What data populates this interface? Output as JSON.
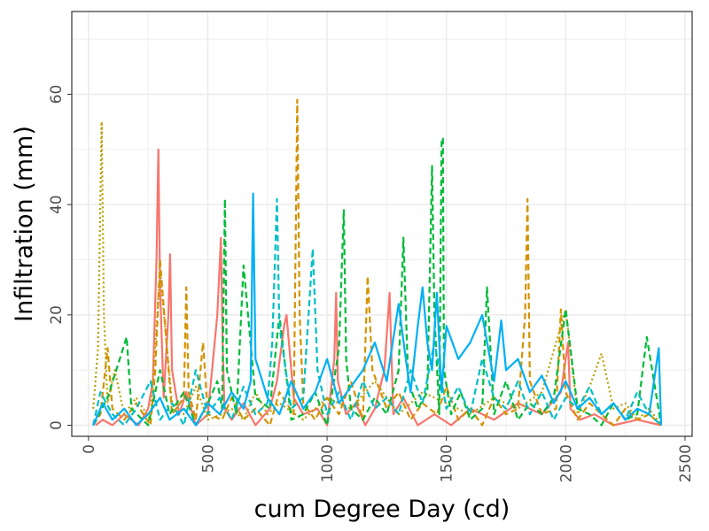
{
  "chart_data": {
    "type": "line",
    "title": "",
    "xlabel": "cum Degree Day (cd)",
    "ylabel": "Infiltration (mm)",
    "xlim": [
      -70,
      2530
    ],
    "ylim": [
      -2,
      75
    ],
    "x_ticks": [
      0,
      500,
      1000,
      1500,
      2000,
      2500
    ],
    "y_ticks": [
      0,
      20,
      40,
      60
    ],
    "grid": true,
    "legend": "none",
    "background": "#ffffff",
    "panel_border": "#333333",
    "grid_color": "#ebebeb",
    "series": [
      {
        "color": "#F8766D",
        "dash": "solid",
        "x": [
          30,
          60,
          100,
          150,
          210,
          250,
          270,
          285,
          293,
          300,
          315,
          335,
          342,
          350,
          380,
          410,
          450,
          500,
          540,
          555,
          562,
          570,
          600,
          650,
          700,
          760,
          790,
          820,
          830,
          860,
          900,
          960,
          1000,
          1030,
          1038,
          1045,
          1080,
          1120,
          1160,
          1200,
          1240,
          1262,
          1270,
          1278,
          1320,
          1380,
          1450,
          1520,
          1600,
          1700,
          1800,
          1900,
          1980,
          2010,
          2020,
          2060,
          2120,
          2200,
          2300,
          2400
        ],
        "y": [
          0,
          1,
          0,
          2,
          0,
          3,
          8,
          30,
          50,
          25,
          5,
          20,
          31,
          10,
          2,
          6,
          0,
          2,
          20,
          34,
          15,
          3,
          1,
          4,
          0,
          3,
          8,
          18,
          20,
          5,
          2,
          3,
          0,
          12,
          24,
          8,
          2,
          4,
          0,
          3,
          10,
          24,
          12,
          2,
          5,
          0,
          2,
          0,
          3,
          1,
          4,
          2,
          6,
          15,
          3,
          1,
          2,
          0,
          1,
          0
        ]
      },
      {
        "color": "#B79F00",
        "dash": "dotted",
        "x": [
          20,
          40,
          55,
          65,
          80,
          110,
          150,
          200,
          260,
          300,
          350,
          400,
          450,
          500,
          560,
          600,
          650,
          700,
          750,
          800,
          900,
          1000,
          1100,
          1200,
          1300,
          1400,
          1500,
          1600,
          1700,
          1800,
          1900,
          2000,
          2050,
          2100,
          2150,
          2200,
          2250,
          2300,
          2350,
          2400
        ],
        "y": [
          3,
          14,
          55,
          20,
          4,
          10,
          2,
          5,
          1,
          28,
          4,
          2,
          7,
          1,
          2,
          3,
          1,
          6,
          2,
          4,
          1,
          5,
          3,
          8,
          2,
          6,
          4,
          2,
          5,
          3,
          6,
          21,
          2,
          7,
          13,
          3,
          4,
          1,
          3,
          0
        ]
      },
      {
        "color": "#D39200",
        "dash": "dashed",
        "x": [
          20,
          50,
          80,
          100,
          150,
          200,
          260,
          280,
          300,
          350,
          400,
          410,
          420,
          450,
          480,
          500,
          560,
          600,
          650,
          700,
          760,
          800,
          860,
          875,
          885,
          900,
          950,
          1000,
          1050,
          1100,
          1150,
          1170,
          1190,
          1250,
          1300,
          1350,
          1400,
          1460,
          1500,
          1550,
          1600,
          1650,
          1700,
          1750,
          1800,
          1830,
          1840,
          1850,
          1900,
          1960,
          1980,
          2000,
          2050,
          2100,
          2150,
          2200,
          2250,
          2300,
          2350,
          2400
        ],
        "y": [
          0,
          2,
          14,
          3,
          1,
          4,
          0,
          10,
          30,
          2,
          5,
          25,
          6,
          1,
          15,
          2,
          1,
          5,
          1,
          3,
          0,
          6,
          2,
          59,
          20,
          4,
          1,
          5,
          2,
          8,
          1,
          27,
          10,
          3,
          6,
          1,
          4,
          2,
          7,
          1,
          3,
          0,
          5,
          2,
          3,
          20,
          41,
          8,
          2,
          3,
          21,
          6,
          1,
          4,
          2,
          0,
          3,
          1,
          2,
          0
        ]
      },
      {
        "color": "#00BA38",
        "dash": "dashed",
        "x": [
          20,
          80,
          160,
          180,
          250,
          300,
          340,
          400,
          450,
          500,
          540,
          560,
          572,
          580,
          620,
          650,
          700,
          760,
          800,
          850,
          900,
          950,
          1000,
          1050,
          1070,
          1080,
          1100,
          1150,
          1200,
          1250,
          1300,
          1320,
          1340,
          1380,
          1420,
          1440,
          1450,
          1470,
          1480,
          1485,
          1490,
          1520,
          1560,
          1600,
          1650,
          1670,
          1700,
          1750,
          1800,
          1850,
          1900,
          1950,
          2000,
          2050,
          2100,
          2150,
          2200,
          2250,
          2300,
          2340,
          2400
        ],
        "y": [
          0,
          5,
          16,
          3,
          0,
          10,
          2,
          6,
          0,
          4,
          8,
          3,
          41,
          10,
          2,
          29,
          5,
          3,
          20,
          1,
          2,
          6,
          0,
          14,
          39,
          12,
          3,
          1,
          5,
          2,
          10,
          34,
          8,
          3,
          6,
          47,
          20,
          2,
          52,
          52,
          10,
          2,
          6,
          1,
          3,
          25,
          2,
          8,
          1,
          4,
          2,
          5,
          21,
          3,
          2,
          0,
          4,
          1,
          2,
          16,
          0
        ]
      },
      {
        "color": "#00BFC4",
        "dash": "dashed",
        "x": [
          20,
          50,
          100,
          150,
          200,
          260,
          300,
          350,
          400,
          450,
          500,
          550,
          600,
          650,
          700,
          750,
          770,
          790,
          800,
          850,
          900,
          940,
          960,
          1000,
          1050,
          1100,
          1150,
          1200,
          1250,
          1300,
          1350,
          1400,
          1450,
          1500,
          1550,
          1600,
          1650,
          1700,
          1750,
          1800,
          1850,
          1900,
          1950,
          2000,
          2050,
          2100,
          2150,
          2200,
          2250,
          2300,
          2350,
          2400
        ],
        "y": [
          0,
          6,
          2,
          0,
          3,
          8,
          1,
          4,
          0,
          10,
          2,
          5,
          1,
          7,
          2,
          4,
          15,
          41,
          18,
          3,
          5,
          32,
          10,
          2,
          6,
          1,
          8,
          3,
          5,
          2,
          10,
          4,
          15,
          3,
          7,
          2,
          12,
          5,
          3,
          8,
          2,
          6,
          1,
          5,
          3,
          7,
          2,
          4,
          1,
          6,
          2,
          0
        ]
      },
      {
        "color": "#00B0F6",
        "dash": "solid",
        "x": [
          20,
          60,
          100,
          150,
          200,
          250,
          300,
          340,
          400,
          450,
          500,
          550,
          600,
          650,
          680,
          690,
          700,
          750,
          800,
          850,
          900,
          950,
          1000,
          1050,
          1100,
          1150,
          1200,
          1250,
          1300,
          1330,
          1350,
          1380,
          1400,
          1410,
          1420,
          1440,
          1460,
          1480,
          1500,
          1550,
          1600,
          1650,
          1700,
          1730,
          1750,
          1800,
          1850,
          1900,
          1950,
          2000,
          2050,
          2100,
          2150,
          2200,
          2250,
          2300,
          2350,
          2390,
          2400
        ],
        "y": [
          0,
          4,
          1,
          3,
          0,
          2,
          5,
          1,
          3,
          0,
          4,
          2,
          6,
          3,
          8,
          42,
          12,
          5,
          2,
          8,
          3,
          6,
          12,
          4,
          7,
          10,
          15,
          8,
          22,
          12,
          6,
          18,
          25,
          20,
          15,
          10,
          24,
          6,
          18,
          12,
          15,
          20,
          8,
          19,
          10,
          12,
          6,
          9,
          4,
          8,
          3,
          5,
          2,
          4,
          1,
          3,
          2,
          14,
          0
        ]
      }
    ]
  }
}
